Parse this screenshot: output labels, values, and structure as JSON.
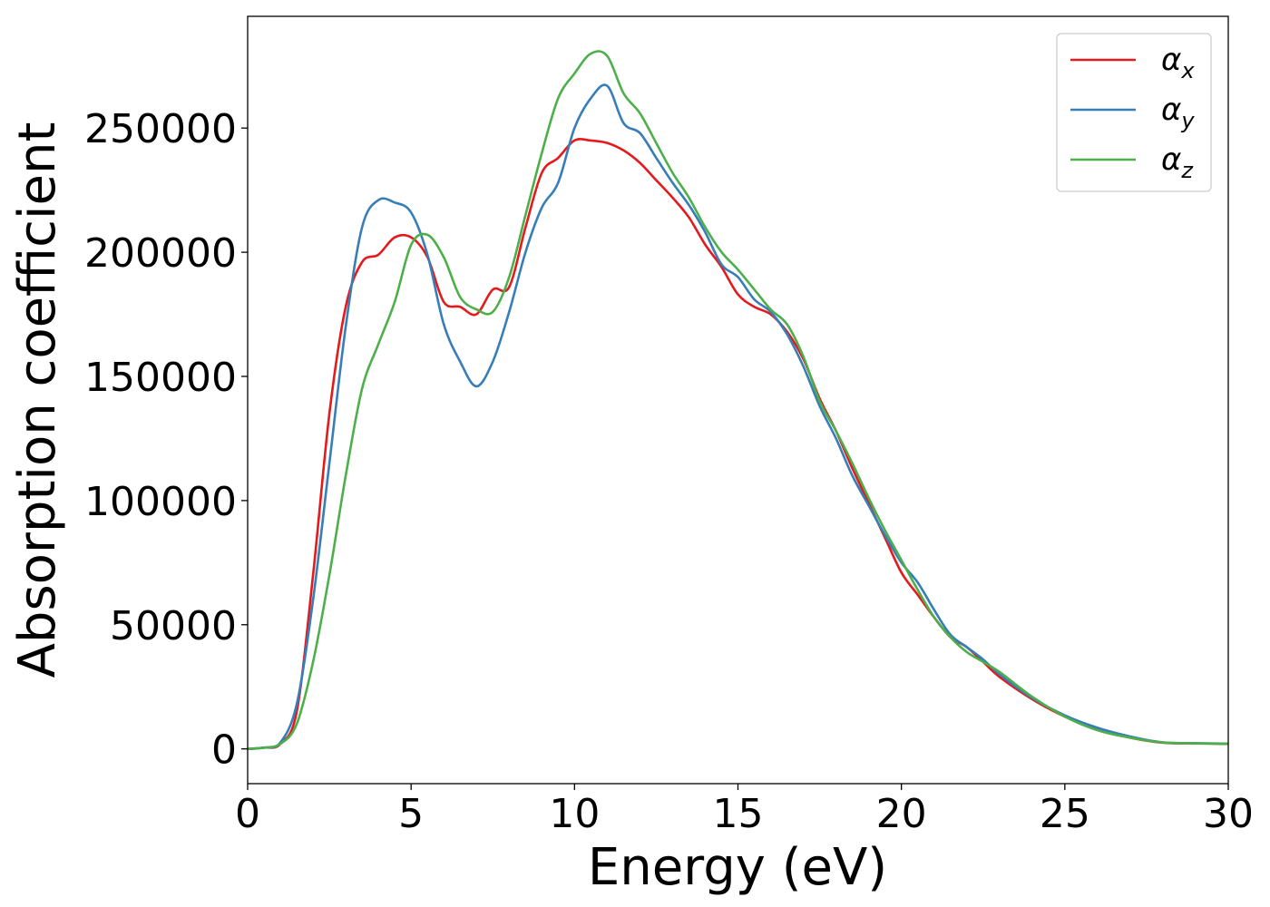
{
  "chart_data": {
    "type": "line",
    "xlabel": "Energy (eV)",
    "ylabel": "Absorption coefficient",
    "xlim": [
      0,
      30
    ],
    "ylim": [
      -14000,
      295000
    ],
    "xticks": [
      0,
      5,
      10,
      15,
      20,
      25,
      30
    ],
    "yticks": [
      0,
      50000,
      100000,
      150000,
      200000,
      250000
    ],
    "grid": false,
    "legend_position": "top-right",
    "series": [
      {
        "name": "α",
        "subscript": "x",
        "color": "#e41a1c",
        "x": [
          0,
          0.5,
          1.0,
          1.5,
          2.0,
          2.5,
          3.0,
          3.5,
          4.0,
          4.5,
          5.0,
          5.5,
          6.0,
          6.5,
          7.0,
          7.5,
          8.0,
          8.5,
          9.0,
          9.5,
          10.0,
          10.5,
          11.0,
          11.5,
          12.0,
          12.5,
          13.0,
          13.5,
          14.0,
          14.5,
          15.0,
          15.5,
          16.0,
          16.5,
          17.0,
          17.5,
          18.0,
          18.5,
          19.0,
          19.5,
          20.0,
          20.5,
          21.0,
          21.5,
          22.0,
          22.5,
          23.0,
          24.0,
          25.0,
          26.0,
          27.0,
          28.0,
          29.0,
          30.0
        ],
        "values": [
          0,
          500,
          2000,
          15000,
          70000,
          135000,
          178000,
          196000,
          199000,
          206000,
          206000,
          198000,
          180000,
          178000,
          175000,
          185000,
          186000,
          210000,
          232000,
          238000,
          245000,
          245000,
          244000,
          241000,
          236000,
          229000,
          222000,
          214000,
          203000,
          194000,
          183000,
          178000,
          175000,
          168000,
          157000,
          141000,
          128000,
          113000,
          99000,
          85000,
          71000,
          62000,
          53000,
          45000,
          41000,
          35000,
          29000,
          20000,
          13000,
          8000,
          4500,
          2500,
          2200,
          2000
        ]
      },
      {
        "name": "α",
        "subscript": "y",
        "color": "#377eb8",
        "x": [
          0,
          0.5,
          1.0,
          1.5,
          2.0,
          2.5,
          3.0,
          3.5,
          4.0,
          4.5,
          5.0,
          5.5,
          6.0,
          6.5,
          7.0,
          7.5,
          8.0,
          8.5,
          9.0,
          9.5,
          10.0,
          10.5,
          11.0,
          11.5,
          12.0,
          12.5,
          13.0,
          13.5,
          14.0,
          14.5,
          15.0,
          15.5,
          16.0,
          16.5,
          17.0,
          17.5,
          18.0,
          18.5,
          19.0,
          19.5,
          20.0,
          20.5,
          21.0,
          21.5,
          22.0,
          22.5,
          23.0,
          24.0,
          25.0,
          26.0,
          27.0,
          28.0,
          29.0,
          30.0
        ],
        "values": [
          0,
          500,
          2500,
          18000,
          60000,
          115000,
          170000,
          210000,
          221000,
          220000,
          216000,
          199000,
          171000,
          156000,
          146000,
          156000,
          176000,
          200000,
          218000,
          228000,
          250000,
          262000,
          267000,
          252000,
          248000,
          238000,
          228000,
          219000,
          208000,
          195000,
          190000,
          181000,
          176000,
          167000,
          154000,
          138000,
          125000,
          110000,
          98000,
          86000,
          75000,
          67000,
          56000,
          46000,
          41000,
          36000,
          30000,
          20500,
          13500,
          8500,
          5000,
          2600,
          2300,
          2100
        ]
      },
      {
        "name": "α",
        "subscript": "z",
        "color": "#4daf4a",
        "x": [
          0,
          0.5,
          1.0,
          1.5,
          2.0,
          2.5,
          3.0,
          3.5,
          4.0,
          4.5,
          5.0,
          5.5,
          6.0,
          6.5,
          7.0,
          7.5,
          8.0,
          8.5,
          9.0,
          9.5,
          10.0,
          10.5,
          11.0,
          11.5,
          12.0,
          12.5,
          13.0,
          13.5,
          14.0,
          14.5,
          15.0,
          15.5,
          16.0,
          16.5,
          17.0,
          17.5,
          18.0,
          18.5,
          19.0,
          19.5,
          20.0,
          20.5,
          21.0,
          21.5,
          22.0,
          22.5,
          23.0,
          24.0,
          25.0,
          26.0,
          27.0,
          28.0,
          29.0,
          30.0
        ],
        "values": [
          0,
          500,
          2000,
          10000,
          35000,
          70000,
          110000,
          145000,
          163000,
          180000,
          203000,
          207000,
          198000,
          182000,
          177000,
          176000,
          190000,
          215000,
          240000,
          262000,
          272000,
          280000,
          279000,
          264000,
          256000,
          244000,
          232000,
          222000,
          210000,
          200000,
          193000,
          185000,
          177000,
          171000,
          158000,
          140000,
          128000,
          115000,
          101000,
          88000,
          76000,
          64000,
          53000,
          45000,
          39000,
          35000,
          31000,
          21000,
          13000,
          7500,
          4500,
          2600,
          2200,
          2100
        ]
      }
    ]
  }
}
